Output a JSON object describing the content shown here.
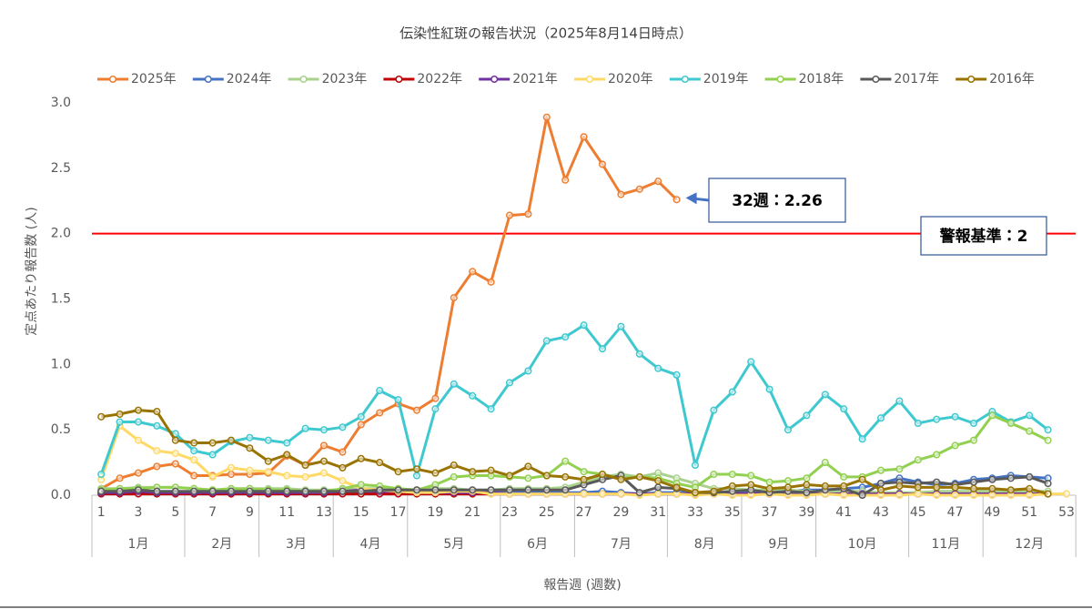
{
  "chart_data": {
    "type": "line",
    "title": "伝染性紅斑の報告状況（2025年8月14日時点）",
    "ylabel": "定点あたり報告数 (人)",
    "xlabel": "報告週 (週数)",
    "categories": [
      1,
      null,
      3,
      null,
      5,
      null,
      7,
      null,
      9,
      null,
      11,
      null,
      13,
      null,
      15,
      null,
      17,
      null,
      19,
      null,
      21,
      null,
      23,
      null,
      25,
      null,
      27,
      null,
      29,
      null,
      31,
      null,
      33,
      null,
      35,
      null,
      37,
      null,
      39,
      null,
      41,
      null,
      43,
      null,
      45,
      null,
      47,
      null,
      49,
      null,
      51,
      null,
      53
    ],
    "month_groups": [
      {
        "label": "1月",
        "span": 5
      },
      {
        "label": "2月",
        "span": 4
      },
      {
        "label": "3月",
        "span": 4
      },
      {
        "label": "4月",
        "span": 4
      },
      {
        "label": "5月",
        "span": 5
      },
      {
        "label": "6月",
        "span": 4
      },
      {
        "label": "7月",
        "span": 5
      },
      {
        "label": "8月",
        "span": 4
      },
      {
        "label": "9月",
        "span": 4
      },
      {
        "label": "10月",
        "span": 5
      },
      {
        "label": "11月",
        "span": 4
      },
      {
        "label": "12月",
        "span": 5
      }
    ],
    "ylim": [
      0,
      3
    ],
    "yticks": [
      {
        "value": 0,
        "label": "0.0"
      },
      {
        "value": 0.5,
        "label": "0.5"
      },
      {
        "value": 1,
        "label": "1.0"
      },
      {
        "value": 1.5,
        "label": "1.5"
      },
      {
        "value": 2,
        "label": "2.0"
      },
      {
        "value": 2.5,
        "label": "2.5"
      },
      {
        "value": 3,
        "label": "3.0"
      }
    ],
    "grid": false,
    "legend": "top",
    "threshold": {
      "value": 2,
      "label": "警報基準：2",
      "color": "#ff0000"
    },
    "callout": {
      "label": "32週：2.26",
      "series": 0,
      "index": 31,
      "color": "#4472c4"
    },
    "series": [
      {
        "name": "2025年",
        "color": "#ed7d31",
        "values": [
          0.05,
          0.13,
          0.17,
          0.22,
          0.24,
          0.15,
          0.15,
          0.16,
          0.16,
          0.17,
          0.3,
          0.23,
          0.38,
          0.33,
          0.54,
          0.63,
          0.7,
          0.65,
          0.74,
          1.51,
          1.71,
          1.63,
          2.14,
          2.15,
          2.89,
          2.41,
          2.74,
          2.53,
          2.3,
          2.34,
          2.4,
          2.26,
          null,
          null,
          null,
          null,
          null,
          null,
          null,
          null,
          null,
          null,
          null,
          null,
          null,
          null,
          null,
          null,
          null,
          null,
          null,
          null,
          null
        ]
      },
      {
        "name": "2024年",
        "color": "#4472c4",
        "values": [
          0.03,
          0.02,
          0.02,
          0.02,
          0.02,
          0.02,
          0.02,
          0.02,
          0.02,
          0.03,
          0.02,
          0.02,
          0.02,
          0.02,
          0.03,
          0.02,
          0.02,
          0.02,
          0.02,
          0.02,
          0.02,
          0.02,
          0.02,
          0.03,
          0.02,
          0.02,
          0.02,
          0.03,
          0.02,
          0.01,
          0.02,
          0.02,
          0.02,
          0.02,
          0.02,
          0.02,
          0.03,
          0.03,
          0.04,
          0.04,
          0.05,
          0.06,
          0.09,
          0.13,
          0.1,
          0.08,
          0.09,
          0.12,
          0.13,
          0.15,
          0.14,
          0.13,
          null
        ]
      },
      {
        "name": "2023年",
        "color": "#a9d18e",
        "values": [
          0.05,
          0.05,
          0.06,
          0.06,
          0.06,
          0.05,
          0.04,
          0.04,
          0.05,
          0.05,
          0.05,
          0.04,
          0.04,
          0.04,
          0.05,
          0.05,
          0.04,
          0.04,
          0.05,
          0.05,
          0.04,
          0.04,
          0.05,
          0.05,
          0.05,
          0.06,
          0.1,
          0.14,
          0.16,
          0.14,
          0.17,
          0.13,
          0.09,
          0.05,
          0.05,
          0.04,
          0.04,
          0.04,
          0.03,
          0.03,
          0.03,
          0.03,
          0.02,
          0.02,
          0.02,
          0.03,
          0.03,
          0.03,
          0.03,
          0.03,
          0.03,
          0.03,
          null
        ]
      },
      {
        "name": "2022年",
        "color": "#c00000",
        "values": [
          0.01,
          0.01,
          0.01,
          0.01,
          0.01,
          0.01,
          0.01,
          0.01,
          0.01,
          0.01,
          0.01,
          0.01,
          0.01,
          0.01,
          0.01,
          0.01,
          0.01,
          0.01,
          0.01,
          0.01,
          0.01,
          0.01,
          0.01,
          0.01,
          0.01,
          0.01,
          0.01,
          0.01,
          0.01,
          0.01,
          0.01,
          0.01,
          0.01,
          0.01,
          0.01,
          0.01,
          0.01,
          0.01,
          0.01,
          0.01,
          0.01,
          0.01,
          0.01,
          0.01,
          0.01,
          0.01,
          0.01,
          0.01,
          0.01,
          0.01,
          0.01,
          0.01,
          null
        ]
      },
      {
        "name": "2021年",
        "color": "#7030a0",
        "values": [
          0.02,
          0.02,
          0.03,
          0.02,
          0.02,
          0.02,
          0.02,
          0.02,
          0.02,
          0.02,
          0.02,
          0.02,
          0.02,
          0.03,
          0.04,
          0.03,
          0.03,
          0.02,
          0.02,
          0.02,
          0.02,
          0.02,
          0.01,
          0.01,
          0.01,
          0.01,
          0.01,
          0.01,
          0.01,
          0.01,
          0.01,
          0.01,
          0.01,
          0.01,
          0.01,
          0.01,
          0.01,
          0.01,
          0.01,
          0.01,
          0.01,
          0.01,
          0.01,
          0.01,
          0.01,
          0.01,
          0.01,
          0.01,
          0.01,
          0.01,
          0.01,
          0.01,
          null
        ]
      },
      {
        "name": "2020年",
        "color": "#ffd966",
        "values": [
          0.12,
          0.53,
          0.42,
          0.34,
          0.32,
          0.27,
          0.14,
          0.21,
          0.19,
          0.18,
          0.15,
          0.14,
          0.17,
          0.11,
          0.05,
          0.04,
          0.03,
          0.02,
          0.02,
          0.03,
          0.03,
          0.01,
          0.01,
          0.01,
          0.01,
          0.01,
          0.01,
          0.01,
          0.01,
          0,
          0.01,
          0.01,
          0,
          0.01,
          0,
          0,
          0.01,
          0,
          0,
          0.01,
          0,
          0,
          0,
          0,
          0.01,
          0,
          0,
          0,
          0,
          0,
          0,
          0.01,
          0.01
        ]
      },
      {
        "name": "2019年",
        "color": "#3ec8cf",
        "values": [
          0.16,
          0.56,
          0.56,
          0.53,
          0.47,
          0.34,
          0.31,
          0.41,
          0.44,
          0.42,
          0.4,
          0.51,
          0.5,
          0.52,
          0.6,
          0.8,
          0.73,
          0.15,
          0.66,
          0.85,
          0.76,
          0.66,
          0.86,
          0.95,
          1.18,
          1.21,
          1.3,
          1.12,
          1.29,
          1.08,
          0.97,
          0.92,
          0.23,
          0.65,
          0.79,
          1.02,
          0.81,
          0.5,
          0.61,
          0.77,
          0.66,
          0.43,
          0.59,
          0.72,
          0.55,
          0.58,
          0.6,
          0.55,
          0.64,
          0.56,
          0.61,
          0.5,
          null
        ]
      },
      {
        "name": "2018年",
        "color": "#92d050",
        "values": [
          0.04,
          0.05,
          0.05,
          0.06,
          0.06,
          0.05,
          0.04,
          0.05,
          0.05,
          0.04,
          0.04,
          0.03,
          0.03,
          0.05,
          0.08,
          0.07,
          0.05,
          0.04,
          0.08,
          0.14,
          0.15,
          0.15,
          0.14,
          0.13,
          0.15,
          0.26,
          0.18,
          0.16,
          0.13,
          0.14,
          0.13,
          0.09,
          0.06,
          0.16,
          0.16,
          0.15,
          0.1,
          0.11,
          0.13,
          0.25,
          0.14,
          0.14,
          0.19,
          0.2,
          0.27,
          0.31,
          0.38,
          0.42,
          0.61,
          0.55,
          0.49,
          0.42,
          null
        ]
      },
      {
        "name": "2017年",
        "color": "#595959",
        "values": [
          0.03,
          0.03,
          0.04,
          0.03,
          0.03,
          0.03,
          0.03,
          0.03,
          0.03,
          0.03,
          0.03,
          0.03,
          0.03,
          0.03,
          0.03,
          0.04,
          0.04,
          0.04,
          0.04,
          0.04,
          0.04,
          0.04,
          0.04,
          0.04,
          0.04,
          0.04,
          0.08,
          0.12,
          0.15,
          0.02,
          0.06,
          0.05,
          0.02,
          0.02,
          0.03,
          0.04,
          0.02,
          0.03,
          0.02,
          0.04,
          0.05,
          0,
          0.09,
          0.1,
          0.09,
          0.1,
          0.08,
          0.1,
          0.12,
          0.13,
          0.14,
          0.09,
          null
        ]
      },
      {
        "name": "2016年",
        "color": "#997300",
        "values": [
          0.6,
          0.62,
          0.65,
          0.64,
          0.42,
          0.4,
          0.4,
          0.42,
          0.36,
          0.26,
          0.31,
          0.23,
          0.26,
          0.21,
          0.28,
          0.25,
          0.18,
          0.2,
          0.17,
          0.23,
          0.18,
          0.19,
          0.15,
          0.22,
          0.15,
          0.14,
          0.12,
          0.16,
          0.12,
          0.14,
          0.11,
          0.06,
          0.02,
          0.03,
          0.07,
          0.08,
          0.05,
          0.06,
          0.08,
          0.07,
          0.07,
          0.12,
          0.04,
          0.07,
          0.06,
          0.06,
          0.06,
          0.05,
          0.05,
          0.04,
          0.05,
          0.01,
          null
        ]
      }
    ]
  }
}
